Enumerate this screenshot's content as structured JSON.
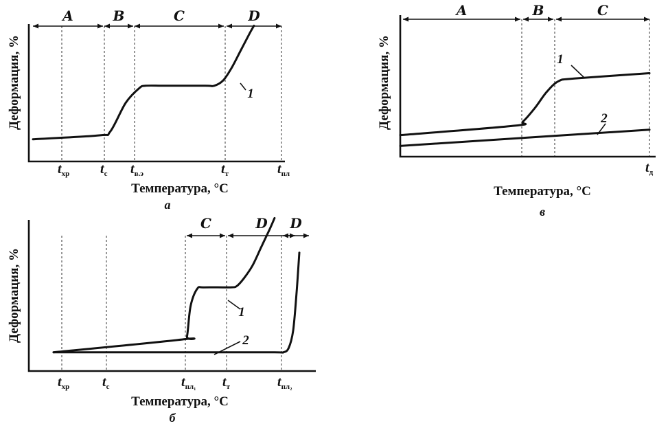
{
  "chart_data": [
    {
      "panel": "а",
      "type": "line",
      "ylabel": "Деформация, %",
      "xlabel": "Температура, °C",
      "x_ticks": [
        {
          "main": "t",
          "sub": "хр"
        },
        {
          "main": "t",
          "sub": "с"
        },
        {
          "main": "t",
          "sub": "в.э"
        },
        {
          "main": "t",
          "sub": "т"
        },
        {
          "main": "t",
          "sub": "пл"
        }
      ],
      "regions": [
        {
          "label": "A",
          "from": 0,
          "to": 1.05
        },
        {
          "label": "B",
          "from": 1.05,
          "to": 1.85
        },
        {
          "label": "C",
          "from": 1.85,
          "to": 4.0
        },
        {
          "label": "D",
          "from": 4.0,
          "to": 5.4
        }
      ],
      "xlim": [
        0,
        5.7
      ],
      "ylim": [
        0,
        100
      ],
      "series": [
        {
          "name": "1",
          "x": [
            0,
            1.5,
            1.75,
            2.1,
            2.4,
            2.55,
            3.0,
            3.9,
            4.1,
            4.3,
            4.5,
            4.7,
            4.9,
            5.0
          ],
          "y": [
            17,
            20,
            23,
            45,
            56,
            58,
            58,
            58,
            58,
            62,
            72,
            85,
            98,
            104
          ]
        }
      ],
      "curve_labels": [
        {
          "text": "1"
        }
      ]
    },
    {
      "panel": "б",
      "type": "line",
      "ylabel": "Деформация, %",
      "xlabel": "Температура, °C",
      "x_ticks": [
        {
          "main": "t",
          "sub": "хр"
        },
        {
          "main": "t",
          "sub": "с"
        },
        {
          "main": "t",
          "sub": "пл₁"
        },
        {
          "main": "t",
          "sub": "т"
        },
        {
          "main": "t",
          "sub": "пл₂"
        }
      ],
      "regions": [
        {
          "label": "C",
          "from": 3.0,
          "to": 4.0
        },
        {
          "label": "D",
          "from": 4.0,
          "to": 5.3
        },
        {
          "label": "D",
          "from": 5.3,
          "to": 5.7
        }
      ],
      "xlim": [
        0,
        5.7
      ],
      "ylim": [
        0,
        100
      ],
      "series": [
        {
          "name": "1",
          "x": [
            0,
            2.95,
            3.02,
            3.1,
            3.25,
            3.4,
            4.0,
            4.15,
            4.3,
            4.5,
            4.7,
            4.9,
            5.0
          ],
          "y": [
            13,
            22,
            24,
            45,
            57,
            58,
            58,
            59,
            64,
            73,
            86,
            99,
            106
          ]
        },
        {
          "name": "2",
          "x": [
            0,
            3.5,
            5.0,
            5.2,
            5.32,
            5.42,
            5.5,
            5.56
          ],
          "y": [
            13,
            13,
            13,
            13,
            16,
            28,
            55,
            82
          ]
        }
      ],
      "curve_labels": [
        {
          "text": "1"
        },
        {
          "text": "2"
        }
      ]
    },
    {
      "panel": "в",
      "type": "line",
      "ylabel": "Деформация, %",
      "xlabel": "Температура, °C",
      "x_ticks": [
        {
          "main": "t",
          "sub": "д"
        }
      ],
      "regions": [
        {
          "label": "A",
          "from": 0,
          "to": 2.9
        },
        {
          "label": "B",
          "from": 2.9,
          "to": 3.8
        },
        {
          "label": "C",
          "from": 3.8,
          "to": 6.3
        }
      ],
      "xlim": [
        0,
        6.3
      ],
      "ylim": [
        0,
        100
      ],
      "series": [
        {
          "name": "1",
          "x": [
            0,
            6.3
          ],
          "y": [
            8,
            20
          ]
        },
        {
          "name": "2",
          "x": [
            0,
            2.9,
            3.1,
            3.4,
            3.7,
            4.0,
            4.4,
            6.3
          ],
          "y": [
            16,
            23,
            26,
            36,
            48,
            56,
            58,
            62
          ]
        }
      ],
      "curve_labels": [
        {
          "text": "1"
        },
        {
          "text": "2"
        }
      ]
    }
  ]
}
